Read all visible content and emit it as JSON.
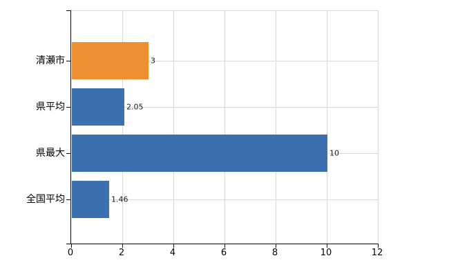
{
  "chart_data": {
    "type": "bar",
    "orientation": "horizontal",
    "title": "",
    "xlabel": "",
    "ylabel": "",
    "categories": [
      "清瀬市",
      "県平均",
      "県最大",
      "全国平均"
    ],
    "values": [
      3,
      2.05,
      10,
      1.46
    ],
    "value_labels": [
      "3",
      "2.05",
      "10",
      "1.46"
    ],
    "bar_colors": [
      "#ef8e33",
      "#3a6fb0",
      "#3a6fb0",
      "#3a6fb0"
    ],
    "xlim": [
      0,
      12
    ],
    "x_ticks": [
      0,
      2,
      4,
      6,
      8,
      10,
      12
    ],
    "x_tick_labels": [
      "0",
      "2",
      "4",
      "6",
      "8",
      "10",
      "12"
    ],
    "grid": true,
    "legend_position": "none",
    "colors": {
      "grid": "#d9d9d9",
      "axis": "#000000",
      "value_label_text": "#1a1a1a",
      "category_label_text": "#000000",
      "background": "#ffffff"
    }
  }
}
